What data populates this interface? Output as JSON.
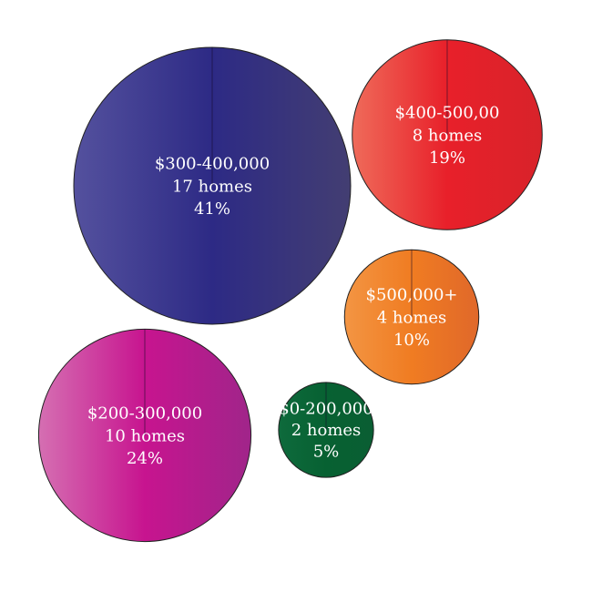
{
  "chart_data": {
    "type": "bubble",
    "title": "",
    "bubbles": [
      {
        "range": "$300-400,000",
        "homes": 17,
        "homes_label": "17 homes",
        "percent": 41,
        "percent_label": "41%",
        "color_left": "#54519e",
        "color_mid": "#2d2a85",
        "color_right": "#433e72"
      },
      {
        "range": "$400-500,00",
        "homes": 8,
        "homes_label": "8 homes",
        "percent": 19,
        "percent_label": "19%",
        "color_left": "#ef6b5a",
        "color_mid": "#e8202a",
        "color_right": "#d8232a"
      },
      {
        "range": "$500,000+",
        "homes": 4,
        "homes_label": "4 homes",
        "percent": 10,
        "percent_label": "10%",
        "color_left": "#f39543",
        "color_mid": "#f07c22",
        "color_right": "#e0682a"
      },
      {
        "range": "$200-300,000",
        "homes": 10,
        "homes_label": "10 homes",
        "percent": 24,
        "percent_label": "24%",
        "color_left": "#d56fb2",
        "color_mid": "#c7148f",
        "color_right": "#a0258a"
      },
      {
        "range": "$0-200,000",
        "homes": 2,
        "homes_label": "2 homes",
        "percent": 5,
        "percent_label": "5%",
        "color_left": "#0e6a3c",
        "color_mid": "#076132",
        "color_right": "#0a5e33"
      }
    ]
  }
}
